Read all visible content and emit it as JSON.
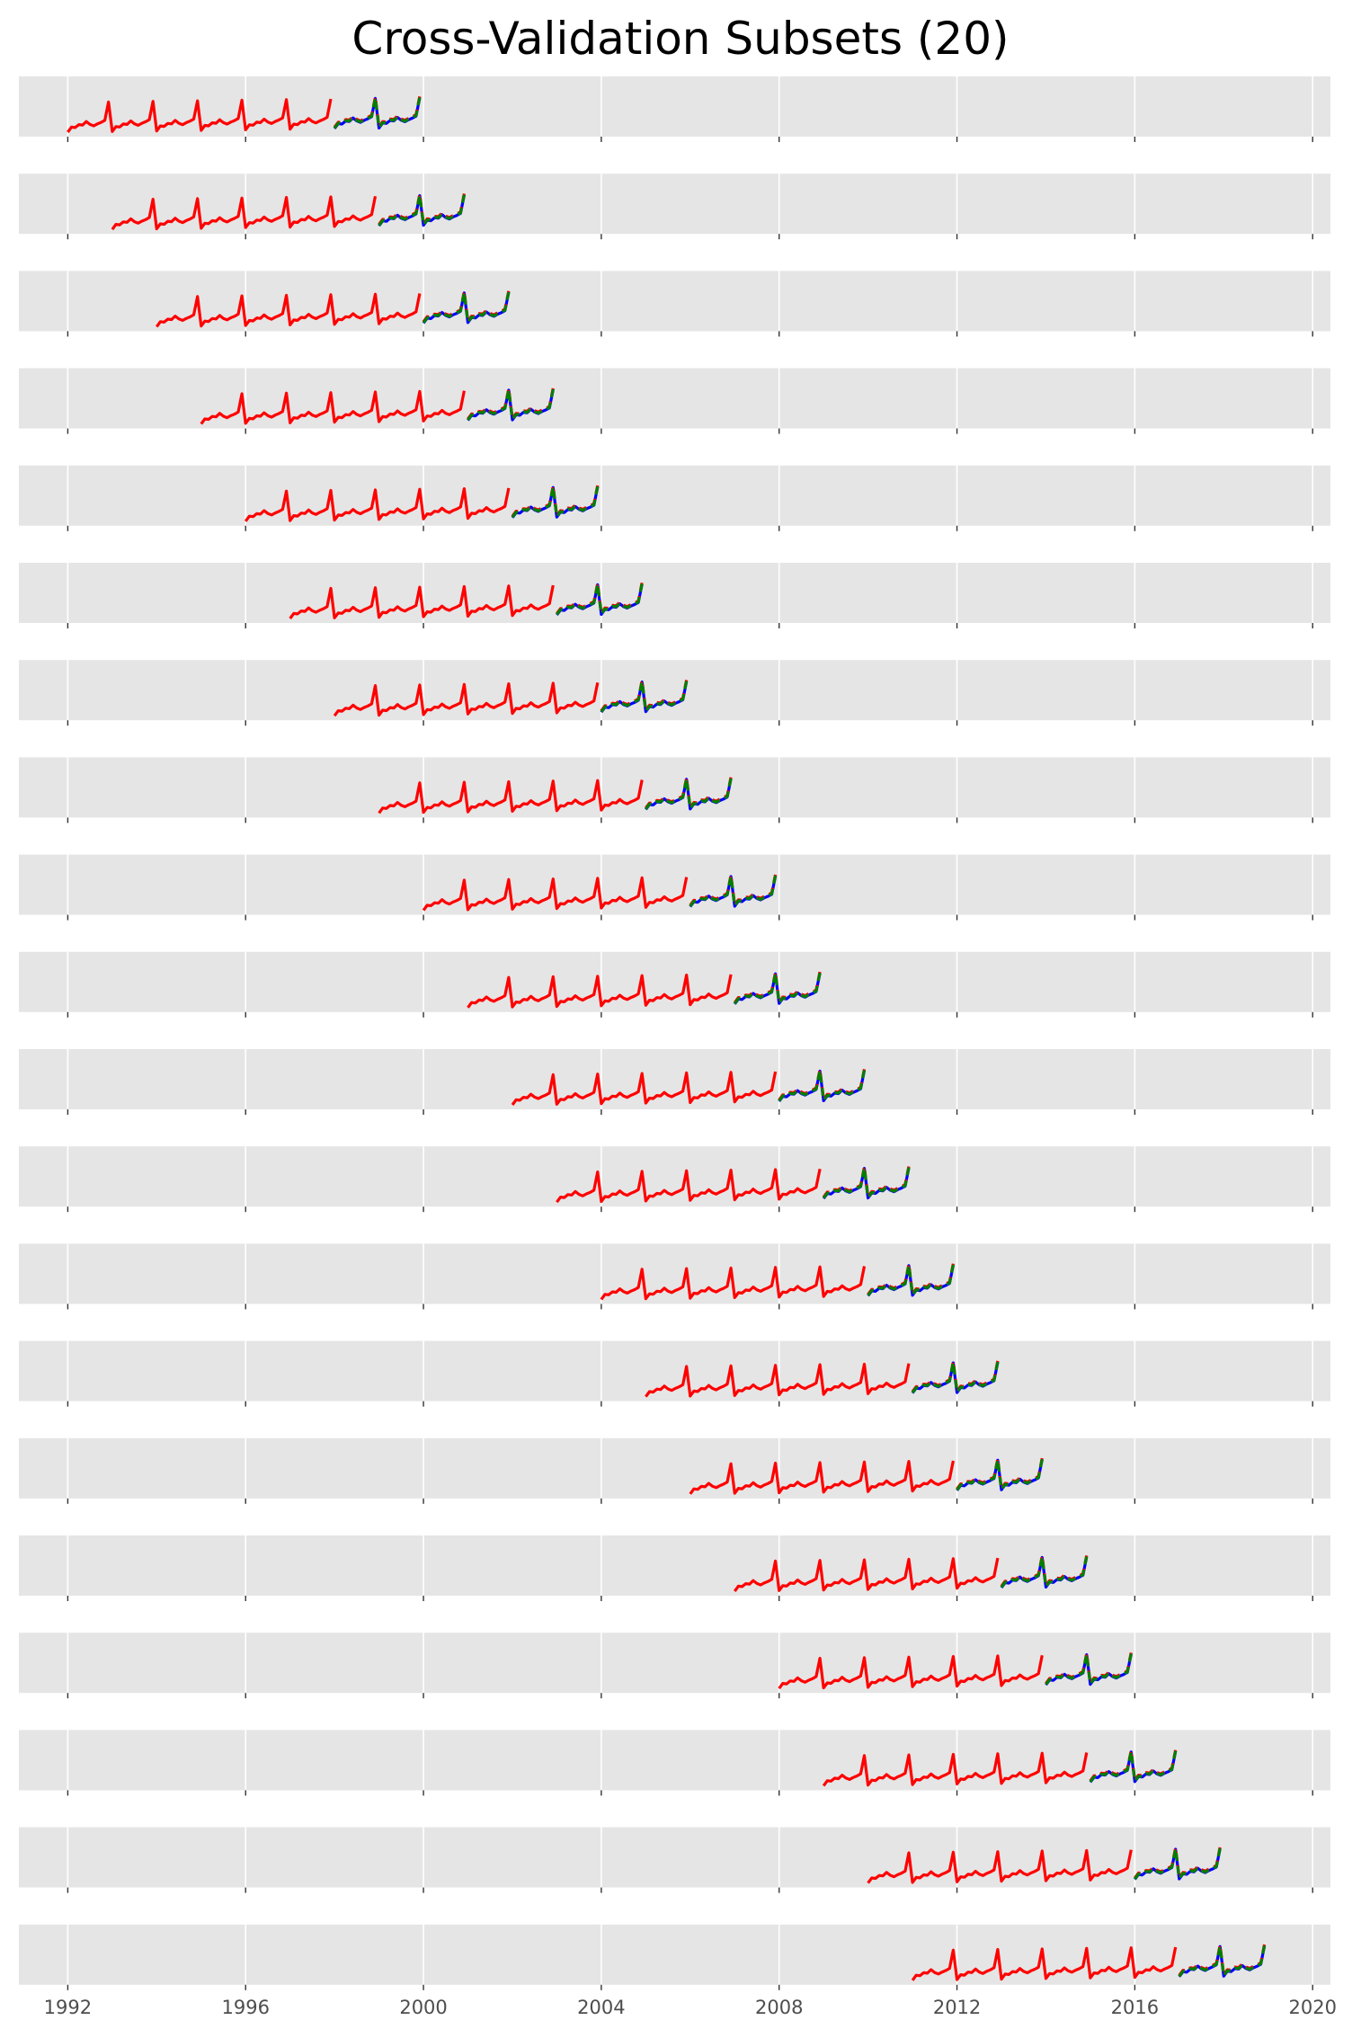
{
  "chart_data": {
    "type": "line",
    "title": "Cross-Validation Subsets (20)",
    "xlabel": "",
    "ylabel": "",
    "x_range": [
      1990.9,
      2020.4
    ],
    "x_ticks": [
      "1992",
      "1996",
      "2000",
      "2004",
      "2008",
      "2012",
      "2016",
      "2020"
    ],
    "grid": true,
    "legend": "none",
    "train_window_years": 6,
    "test_window_years": 2,
    "subsets": [
      {
        "train_start": 1992,
        "train_end": 1998,
        "test_start": 1998,
        "test_end": 2000
      },
      {
        "train_start": 1993,
        "train_end": 1999,
        "test_start": 1999,
        "test_end": 2001
      },
      {
        "train_start": 1994,
        "train_end": 2000,
        "test_start": 2000,
        "test_end": 2002
      },
      {
        "train_start": 1995,
        "train_end": 2001,
        "test_start": 2001,
        "test_end": 2003
      },
      {
        "train_start": 1996,
        "train_end": 2002,
        "test_start": 2002,
        "test_end": 2004
      },
      {
        "train_start": 1997,
        "train_end": 2003,
        "test_start": 2003,
        "test_end": 2005
      },
      {
        "train_start": 1998,
        "train_end": 2004,
        "test_start": 2004,
        "test_end": 2006
      },
      {
        "train_start": 1999,
        "train_end": 2005,
        "test_start": 2005,
        "test_end": 2007
      },
      {
        "train_start": 2000,
        "train_end": 2006,
        "test_start": 2006,
        "test_end": 2008
      },
      {
        "train_start": 2001,
        "train_end": 2007,
        "test_start": 2007,
        "test_end": 2009
      },
      {
        "train_start": 2002,
        "train_end": 2008,
        "test_start": 2008,
        "test_end": 2010
      },
      {
        "train_start": 2003,
        "train_end": 2009,
        "test_start": 2009,
        "test_end": 2011
      },
      {
        "train_start": 2004,
        "train_end": 2010,
        "test_start": 2010,
        "test_end": 2012
      },
      {
        "train_start": 2005,
        "train_end": 2011,
        "test_start": 2011,
        "test_end": 2013
      },
      {
        "train_start": 2006,
        "train_end": 2012,
        "test_start": 2012,
        "test_end": 2014
      },
      {
        "train_start": 2007,
        "train_end": 2013,
        "test_start": 2013,
        "test_end": 2015
      },
      {
        "train_start": 2008,
        "train_end": 2014,
        "test_start": 2014,
        "test_end": 2016
      },
      {
        "train_start": 2009,
        "train_end": 2015,
        "test_start": 2015,
        "test_end": 2017
      },
      {
        "train_start": 2010,
        "train_end": 2016,
        "test_start": 2016,
        "test_end": 2018
      },
      {
        "train_start": 2011,
        "train_end": 2017,
        "test_start": 2017,
        "test_end": 2019
      }
    ],
    "colors": {
      "train": "#ff0000",
      "test_actual": "#0000ff",
      "forecast_red": "#ff0000",
      "forecast_green": "#008000",
      "panel_bg": "#e5e5e5",
      "grid": "#ffffff",
      "tick_label": "#4d4d4d",
      "tick_mark": "#333333"
    }
  }
}
